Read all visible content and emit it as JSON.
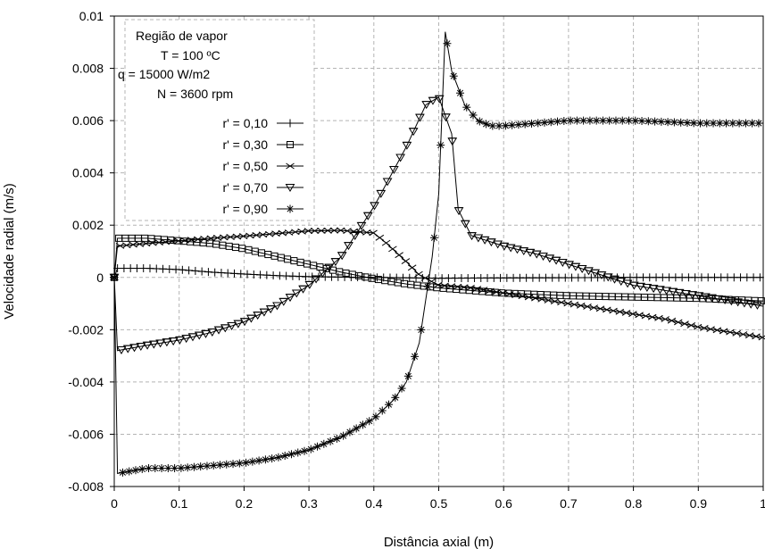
{
  "chart_data": {
    "type": "line",
    "title": "",
    "xlabel": "Distância axial (m)",
    "ylabel": "Velocidade radial (m/s)",
    "xlim": [
      0,
      1
    ],
    "ylim": [
      -0.008,
      0.01
    ],
    "xticks": [
      "0",
      "0.1",
      "0.2",
      "0.3",
      "0.4",
      "0.5",
      "0.6",
      "0.7",
      "0.8",
      "0.9",
      "1"
    ],
    "yticks": [
      "-0.008",
      "-0.006",
      "-0.004",
      "-0.002",
      "0",
      "0.002",
      "0.004",
      "0.006",
      "0.008",
      "0.01"
    ],
    "grid": true,
    "legend_position": "top-left",
    "legend_header": [
      "Região de vapor",
      "T = 100 ºC",
      "q = 15000 W/m2",
      "N = 3600 rpm"
    ],
    "series": [
      {
        "name": "r' = 0,10",
        "marker": "plus",
        "x": [
          0,
          0.005,
          0.05,
          0.1,
          0.15,
          0.2,
          0.25,
          0.3,
          0.4,
          0.5,
          0.6,
          0.7,
          0.8,
          0.9,
          1.0
        ],
        "y": [
          0,
          0.00035,
          0.00035,
          0.0003,
          0.0002,
          0.00013,
          7e-05,
          3e-05,
          0.0,
          -3e-05,
          -2e-05,
          -1e-05,
          0.0,
          0.0,
          0.0
        ]
      },
      {
        "name": "r' = 0,30",
        "marker": "square",
        "x": [
          0,
          0.005,
          0.05,
          0.1,
          0.15,
          0.2,
          0.25,
          0.3,
          0.35,
          0.4,
          0.45,
          0.5,
          0.6,
          0.7,
          0.8,
          0.9,
          1.0
        ],
        "y": [
          0,
          0.0015,
          0.0015,
          0.0014,
          0.0013,
          0.0011,
          0.0008,
          0.0005,
          0.0002,
          -5e-05,
          -0.00025,
          -0.0004,
          -0.0006,
          -0.0007,
          -0.00075,
          -0.0008,
          -0.0009
        ]
      },
      {
        "name": "r' = 0,50",
        "marker": "x",
        "x": [
          0,
          0.005,
          0.05,
          0.1,
          0.15,
          0.2,
          0.25,
          0.3,
          0.35,
          0.4,
          0.42,
          0.45,
          0.47,
          0.5,
          0.55,
          0.6,
          0.65,
          0.7,
          0.75,
          0.8,
          0.85,
          0.9,
          0.95,
          1.0
        ],
        "y": [
          0,
          0.0012,
          0.0013,
          0.0014,
          0.0015,
          0.00158,
          0.00168,
          0.00178,
          0.0018,
          0.0017,
          0.0013,
          0.0006,
          0.0001,
          -0.0003,
          -0.0004,
          -0.0006,
          -0.0008,
          -0.001,
          -0.0012,
          -0.0014,
          -0.0016,
          -0.0019,
          -0.0021,
          -0.0023
        ]
      },
      {
        "name": "r' = 0,70",
        "marker": "triangle-down",
        "x": [
          0,
          0.005,
          0.05,
          0.1,
          0.15,
          0.2,
          0.25,
          0.3,
          0.35,
          0.4,
          0.45,
          0.48,
          0.5,
          0.52,
          0.53,
          0.55,
          0.6,
          0.65,
          0.7,
          0.75,
          0.8,
          0.9,
          1.0
        ],
        "y": [
          0,
          -0.0028,
          -0.0026,
          -0.0024,
          -0.0021,
          -0.0017,
          -0.0011,
          -0.0003,
          0.0008,
          0.0027,
          0.005,
          0.0066,
          0.0069,
          0.0055,
          0.0026,
          0.0016,
          0.0012,
          0.0009,
          0.0005,
          0.0001,
          -0.0003,
          -0.0007,
          -0.0011
        ]
      },
      {
        "name": "r' = 0,90",
        "marker": "asterisk",
        "x": [
          0,
          0.005,
          0.05,
          0.1,
          0.15,
          0.2,
          0.25,
          0.3,
          0.35,
          0.4,
          0.43,
          0.45,
          0.47,
          0.49,
          0.5,
          0.51,
          0.52,
          0.54,
          0.56,
          0.58,
          0.6,
          0.65,
          0.7,
          0.8,
          0.9,
          1.0
        ],
        "y": [
          0,
          -0.0075,
          -0.0073,
          -0.0073,
          -0.0072,
          -0.0071,
          -0.0069,
          -0.0066,
          -0.0061,
          -0.0054,
          -0.0047,
          -0.004,
          -0.0025,
          0.0008,
          0.0032,
          0.0094,
          0.0079,
          0.0066,
          0.006,
          0.0058,
          0.0058,
          0.0059,
          0.006,
          0.006,
          0.0059,
          0.0059
        ]
      }
    ]
  }
}
